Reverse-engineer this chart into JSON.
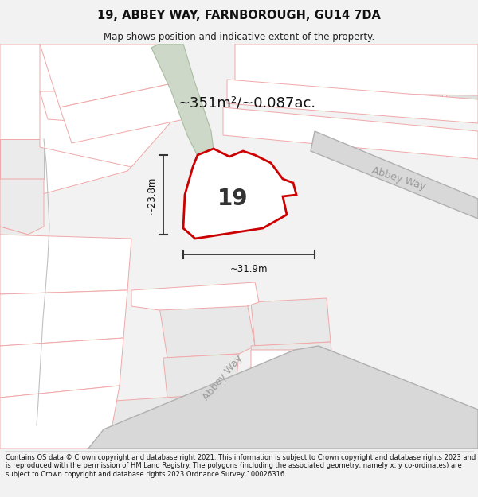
{
  "title": "19, ABBEY WAY, FARNBOROUGH, GU14 7DA",
  "subtitle": "Map shows position and indicative extent of the property.",
  "area_text": "~351m²/~0.087ac.",
  "dim_width": "~31.9m",
  "dim_height": "~23.8m",
  "number_label": "19",
  "road_label_ur": "Abbey Way",
  "road_label_bl": "Abbey Way",
  "footer": "Contains OS data © Crown copyright and database right 2021. This information is subject to Crown copyright and database rights 2023 and is reproduced with the permission of HM Land Registry. The polygons (including the associated geometry, namely x, y co-ordinates) are subject to Crown copyright and database rights 2023 Ordnance Survey 100026316.",
  "bg_color": "#f2f2f2",
  "map_bg": "#ffffff",
  "plot_fill": "#ffffff",
  "plot_outline": "#cc0000",
  "building_fill": "#e0e0e0",
  "green_fill": "#cdd8c8",
  "light_red_line": "#f0a8a8",
  "dark_line": "#b0b0b0",
  "footer_line": "#cccccc"
}
